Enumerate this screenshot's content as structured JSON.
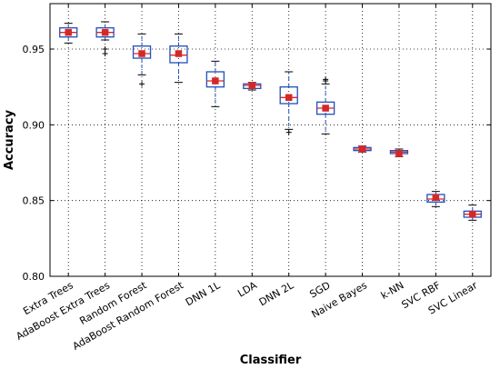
{
  "chart_data": {
    "type": "box",
    "title": "",
    "xlabel": "Classifier",
    "ylabel": "Accuracy",
    "ylim": [
      0.8,
      0.98
    ],
    "yticks": [
      0.8,
      0.85,
      0.9,
      0.95
    ],
    "ytick_labels": [
      "0.80",
      "0.85",
      "0.90",
      "0.95"
    ],
    "grid": "dotted",
    "legend": "none",
    "categories": [
      "Extra Trees",
      "AdaBoost Extra Trees",
      "Random Forest",
      "AdaBoost Random Forest",
      "DNN 1L",
      "LDA",
      "DNN 2L",
      "SGD",
      "Naive Bayes",
      "k-NN",
      "SVC RBF",
      "SVC Linear"
    ],
    "boxes": [
      {
        "whisker_low": 0.954,
        "q1": 0.958,
        "median": 0.961,
        "q3": 0.964,
        "whisker_high": 0.967,
        "mean": 0.961,
        "fliers": []
      },
      {
        "whisker_low": 0.956,
        "q1": 0.958,
        "median": 0.961,
        "q3": 0.964,
        "whisker_high": 0.968,
        "mean": 0.961,
        "fliers": [
          0.95,
          0.947
        ]
      },
      {
        "whisker_low": 0.933,
        "q1": 0.944,
        "median": 0.947,
        "q3": 0.952,
        "whisker_high": 0.96,
        "mean": 0.947,
        "fliers": [
          0.927
        ]
      },
      {
        "whisker_low": 0.928,
        "q1": 0.941,
        "median": 0.946,
        "q3": 0.952,
        "whisker_high": 0.96,
        "mean": 0.947,
        "fliers": []
      },
      {
        "whisker_low": 0.912,
        "q1": 0.925,
        "median": 0.929,
        "q3": 0.935,
        "whisker_high": 0.942,
        "mean": 0.929,
        "fliers": []
      },
      {
        "whisker_low": 0.923,
        "q1": 0.924,
        "median": 0.926,
        "q3": 0.927,
        "whisker_high": 0.928,
        "mean": 0.926,
        "fliers": []
      },
      {
        "whisker_low": 0.897,
        "q1": 0.914,
        "median": 0.918,
        "q3": 0.925,
        "whisker_high": 0.935,
        "mean": 0.918,
        "fliers": [
          0.895
        ]
      },
      {
        "whisker_low": 0.894,
        "q1": 0.907,
        "median": 0.911,
        "q3": 0.915,
        "whisker_high": 0.927,
        "mean": 0.911,
        "fliers": [
          0.929,
          0.93
        ]
      },
      {
        "whisker_low": 0.882,
        "q1": 0.883,
        "median": 0.884,
        "q3": 0.885,
        "whisker_high": 0.886,
        "mean": 0.884,
        "fliers": []
      },
      {
        "whisker_low": 0.879,
        "q1": 0.881,
        "median": 0.882,
        "q3": 0.883,
        "whisker_high": 0.884,
        "mean": 0.881,
        "fliers": []
      },
      {
        "whisker_low": 0.846,
        "q1": 0.849,
        "median": 0.851,
        "q3": 0.854,
        "whisker_high": 0.856,
        "mean": 0.852,
        "fliers": []
      },
      {
        "whisker_low": 0.837,
        "q1": 0.839,
        "median": 0.841,
        "q3": 0.843,
        "whisker_high": 0.847,
        "mean": 0.841,
        "fliers": []
      }
    ],
    "colors": {
      "box": "#1f4fbf",
      "median": "#d62728",
      "mean_marker": "#d62728",
      "whisker": "#1f4fbf",
      "cap": "#000000",
      "flier": "#000000",
      "grid": "#000000"
    }
  }
}
